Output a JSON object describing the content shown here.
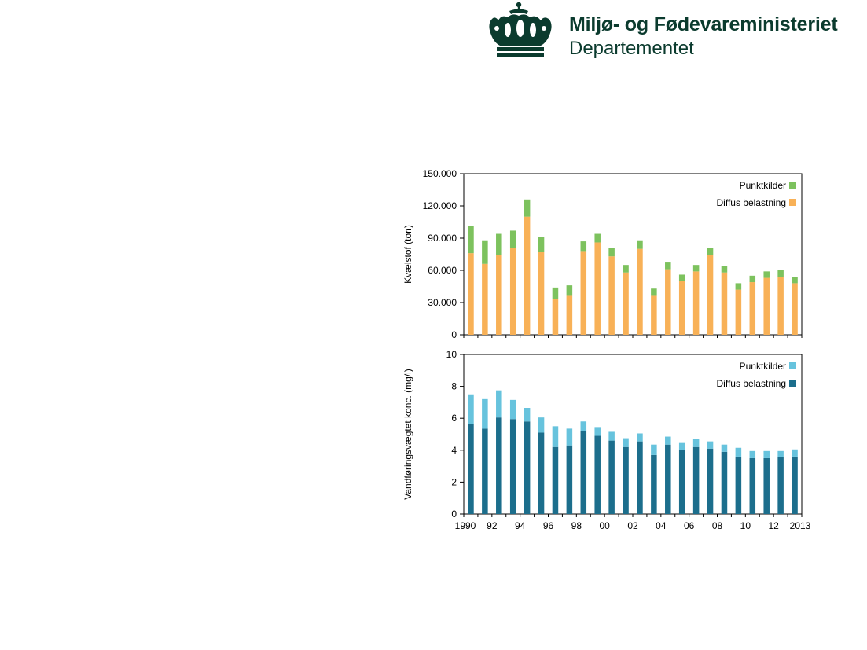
{
  "header": {
    "ministry": "Miljø- og Fødevareministeriet",
    "department": "Departementet",
    "brand_color": "#0b3b2e"
  },
  "colors": {
    "nitrogen_point": "#7dc25e",
    "nitrogen_diffuse": "#f8b157",
    "conc_point": "#67c3dd",
    "conc_diffuse": "#1c6e8c",
    "axis": "#000000"
  },
  "chart_data": [
    {
      "type": "bar",
      "stacked": true,
      "ylabel": "Kvælstof (ton)",
      "ylim": [
        0,
        150000
      ],
      "yticks": [
        "0",
        "30.000",
        "60.000",
        "90.000",
        "120.000",
        "150.000"
      ],
      "ytick_values": [
        0,
        30000,
        60000,
        90000,
        120000,
        150000
      ],
      "categories": [
        "1990",
        "1991",
        "1992",
        "1993",
        "1994",
        "1995",
        "1996",
        "1997",
        "1998",
        "1999",
        "2000",
        "2001",
        "2002",
        "2003",
        "2004",
        "2005",
        "2006",
        "2007",
        "2008",
        "2009",
        "2010",
        "2011",
        "2012",
        "2013"
      ],
      "series": [
        {
          "name": "Diffus belastning",
          "values": [
            76000,
            66000,
            74000,
            81000,
            110000,
            77000,
            33000,
            37000,
            78000,
            86000,
            73000,
            58000,
            80000,
            37000,
            61000,
            50000,
            59000,
            74000,
            58000,
            42000,
            49000,
            53000,
            54000,
            48000
          ]
        },
        {
          "name": "Punktkilder",
          "values": [
            25000,
            22000,
            20000,
            16000,
            16000,
            14000,
            11000,
            9000,
            9000,
            8000,
            8000,
            7000,
            8000,
            6000,
            7000,
            6000,
            6000,
            7000,
            6000,
            6000,
            6000,
            6000,
            6000,
            6000
          ]
        }
      ],
      "legend": "top-right"
    },
    {
      "type": "bar",
      "stacked": true,
      "ylabel": "Vandføringsvægtet konc. (mg/l)",
      "xlabel": "",
      "ylim": [
        0,
        10
      ],
      "yticks": [
        "0",
        "2",
        "4",
        "6",
        "8",
        "10"
      ],
      "ytick_values": [
        0,
        2,
        4,
        6,
        8,
        10
      ],
      "xticks": [
        "1990",
        "92",
        "94",
        "96",
        "98",
        "00",
        "02",
        "04",
        "06",
        "08",
        "10",
        "12",
        "2013"
      ],
      "xtick_index": [
        0,
        2,
        4,
        6,
        8,
        10,
        12,
        14,
        16,
        18,
        20,
        22,
        23
      ],
      "categories": [
        "1990",
        "1991",
        "1992",
        "1993",
        "1994",
        "1995",
        "1996",
        "1997",
        "1998",
        "1999",
        "2000",
        "2001",
        "2002",
        "2003",
        "2004",
        "2005",
        "2006",
        "2007",
        "2008",
        "2009",
        "2010",
        "2011",
        "2012",
        "2013"
      ],
      "series": [
        {
          "name": "Diffus belastning",
          "values": [
            5.65,
            5.35,
            6.05,
            5.95,
            5.8,
            5.1,
            4.2,
            4.3,
            5.2,
            4.9,
            4.6,
            4.2,
            4.55,
            3.7,
            4.35,
            4.0,
            4.2,
            4.1,
            3.9,
            3.6,
            3.5,
            3.5,
            3.55,
            3.6
          ]
        },
        {
          "name": "Punktkilder",
          "values": [
            1.85,
            1.85,
            1.7,
            1.2,
            0.85,
            0.95,
            1.3,
            1.05,
            0.6,
            0.55,
            0.55,
            0.55,
            0.5,
            0.65,
            0.5,
            0.5,
            0.5,
            0.45,
            0.45,
            0.55,
            0.45,
            0.45,
            0.4,
            0.45
          ]
        }
      ],
      "legend": "top-right"
    }
  ]
}
